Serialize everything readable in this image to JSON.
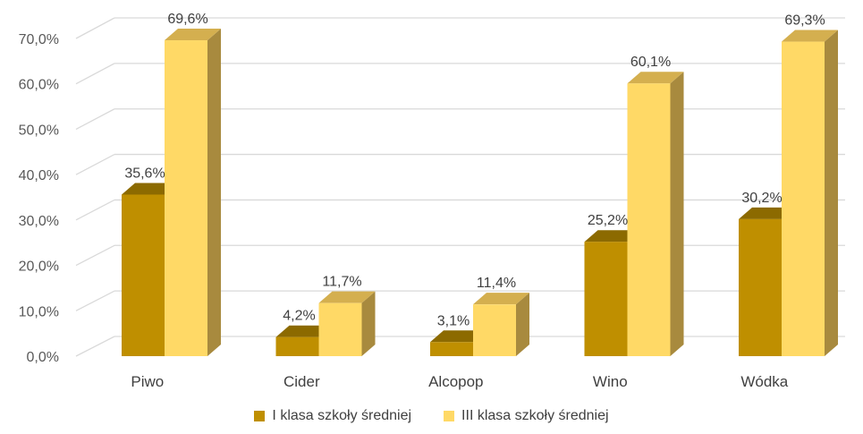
{
  "chart_data": {
    "type": "bar",
    "style": "3d-clustered-column",
    "categories": [
      "Piwo",
      "Cider",
      "Alcopop",
      "Wino",
      "Wódka"
    ],
    "series": [
      {
        "name": "I klasa szkoły średniej",
        "values": [
          35.6,
          4.2,
          3.1,
          25.2,
          30.2
        ],
        "labels": [
          "35,6%",
          "4,2%",
          "3,1%",
          "25,2%",
          "30,2%"
        ],
        "color": "#BF8F00",
        "top_color": "#8C6A00",
        "side_color": "#8C6A00"
      },
      {
        "name": "III klasa szkoły średniej",
        "values": [
          69.6,
          11.7,
          11.4,
          60.1,
          69.3
        ],
        "labels": [
          "69,6%",
          "11,7%",
          "11,4%",
          "60,1%",
          "69,3%"
        ],
        "color": "#FFD966",
        "top_color": "#D4AF4F",
        "side_color": "#A88A3E"
      }
    ],
    "y_ticks": [
      "0,0%",
      "10,0%",
      "20,0%",
      "30,0%",
      "40,0%",
      "50,0%",
      "60,0%",
      "70,0%"
    ],
    "ylim": [
      0,
      70
    ],
    "grid": true,
    "legend_position": "bottom",
    "grid_color": "#D9D9D9"
  }
}
